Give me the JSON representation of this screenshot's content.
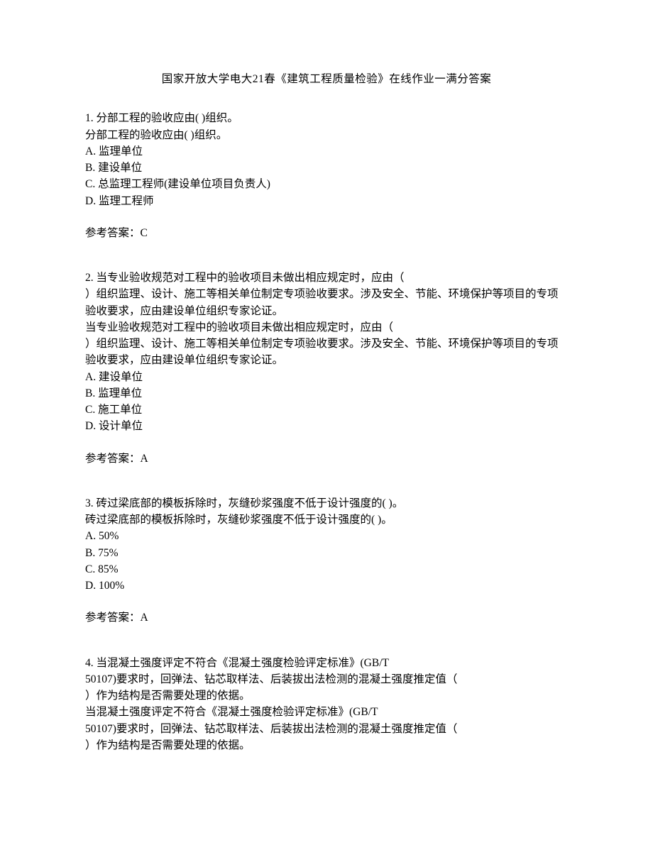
{
  "title": "国家开放大学电大21春《建筑工程质量检验》在线作业一满分答案",
  "q1": {
    "line1": "1. 分部工程的验收应由(  )组织。",
    "line2": "分部工程的验收应由(  )组织。",
    "optA": "A. 监理单位",
    "optB": "B. 建设单位",
    "optC": "C. 总监理工程师(建设单位项目负责人)",
    "optD": "D. 监理工程师",
    "answer": "参考答案：C"
  },
  "q2": {
    "line1": "2. 当专业验收规范对工程中的验收项目未做出相应规定时，应由（",
    "line2": "）组织监理、设计、施工等相关单位制定专项验收要求。涉及安全、节能、环境保护等项目的专项验收要求，应由建设单位组织专家论证。",
    "line3": "当专业验收规范对工程中的验收项目未做出相应规定时，应由（",
    "line4": "）组织监理、设计、施工等相关单位制定专项验收要求。涉及安全、节能、环境保护等项目的专项验收要求，应由建设单位组织专家论证。",
    "optA": "A. 建设单位",
    "optB": "B. 监理单位",
    "optC": "C. 施工单位",
    "optD": "D. 设计单位",
    "answer": "参考答案：A"
  },
  "q3": {
    "line1": "3. 砖过梁底部的模板拆除时，灰缝砂浆强度不低于设计强度的(  )。",
    "line2": "砖过梁底部的模板拆除时，灰缝砂浆强度不低于设计强度的(  )。",
    "optA": "A. 50%",
    "optB": "B. 75%",
    "optC": "C. 85%",
    "optD": "D. 100%",
    "answer": "参考答案：A"
  },
  "q4": {
    "line1": "4. 当混凝土强度评定不符合《混凝土强度检验评定标准》(GB/T",
    "line2": "50107)要求时，回弹法、钻芯取样法、后装拔出法检测的混凝土强度推定值（",
    "line3": "）作为结构是否需要处理的依据。",
    "line4": "当混凝土强度评定不符合《混凝土强度检验评定标准》(GB/T",
    "line5": "50107)要求时，回弹法、钻芯取样法、后装拔出法检测的混凝土强度推定值（",
    "line6": "）作为结构是否需要处理的依据。"
  }
}
